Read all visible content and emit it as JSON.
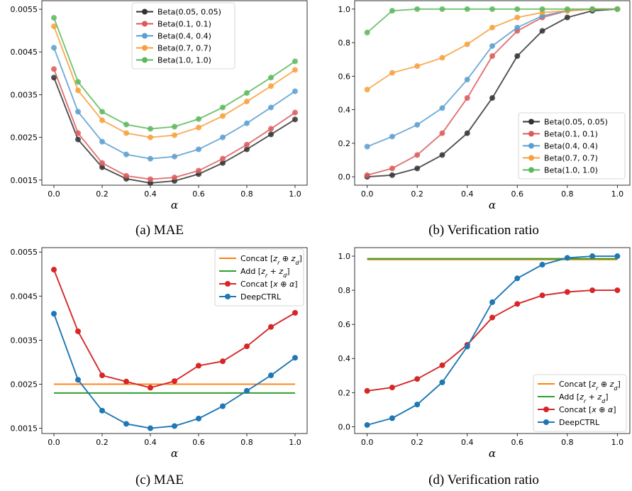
{
  "colors": {
    "beta_0.05": "#333333",
    "beta_0.1": "#dc5a5a",
    "beta_0.4": "#5a9fd0",
    "beta_0.7": "#f7a03c",
    "beta_1.0": "#5cb85c",
    "concat_zr_zd": "#ff7f0e",
    "add_zr_zd": "#2ca02c",
    "concat_x_alpha": "#d62728",
    "deepctrl": "#1f77b4"
  },
  "chart_data": [
    {
      "id": "a",
      "type": "line",
      "caption": "(a) MAE",
      "xlabel": "α",
      "ylabel": "",
      "xlim": [
        -0.05,
        1.05
      ],
      "ylim": [
        0.00138,
        0.0057
      ],
      "xticks": [
        "0.0",
        "0.2",
        "0.4",
        "0.6",
        "0.8",
        "1.0"
      ],
      "xtick_values": [
        0,
        0.2,
        0.4,
        0.6,
        0.8,
        1.0
      ],
      "yticks": [
        "0.0015",
        "0.0025",
        "0.0035",
        "0.0045",
        "0.0055"
      ],
      "ytick_values": [
        0.0015,
        0.0025,
        0.0035,
        0.0045,
        0.0055
      ],
      "legend": "top-center",
      "x": [
        0,
        0.1,
        0.2,
        0.3,
        0.4,
        0.5,
        0.6,
        0.7,
        0.8,
        0.9,
        1.0
      ],
      "series": [
        {
          "name": "Beta(0.05, 0.05)",
          "color_key": "beta_0.05",
          "values": [
            0.0039,
            0.00245,
            0.0018,
            0.00153,
            0.00143,
            0.00148,
            0.00164,
            0.0019,
            0.00222,
            0.00257,
            0.00292
          ]
        },
        {
          "name": "Beta(0.1, 0.1)",
          "color_key": "beta_0.1",
          "values": [
            0.0041,
            0.0026,
            0.0019,
            0.0016,
            0.00152,
            0.00156,
            0.00172,
            0.002,
            0.00233,
            0.0027,
            0.00308
          ]
        },
        {
          "name": "Beta(0.4, 0.4)",
          "color_key": "beta_0.4",
          "values": [
            0.0046,
            0.0031,
            0.0024,
            0.0021,
            0.002,
            0.00205,
            0.00222,
            0.0025,
            0.00283,
            0.0032,
            0.00358
          ]
        },
        {
          "name": "Beta(0.7, 0.7)",
          "color_key": "beta_0.7",
          "values": [
            0.0051,
            0.0036,
            0.0029,
            0.0026,
            0.0025,
            0.00255,
            0.00273,
            0.003,
            0.00334,
            0.0037,
            0.00408
          ]
        },
        {
          "name": "Beta(1.0, 1.0)",
          "color_key": "beta_1.0",
          "values": [
            0.0053,
            0.0038,
            0.0031,
            0.0028,
            0.0027,
            0.00275,
            0.00293,
            0.0032,
            0.00354,
            0.0039,
            0.00428
          ]
        }
      ]
    },
    {
      "id": "b",
      "type": "line",
      "caption": "(b) Verification ratio",
      "xlabel": "α",
      "ylabel": "",
      "xlim": [
        -0.05,
        1.05
      ],
      "ylim": [
        -0.05,
        1.05
      ],
      "xticks": [
        "0.0",
        "0.2",
        "0.4",
        "0.6",
        "0.8",
        "1.0"
      ],
      "xtick_values": [
        0,
        0.2,
        0.4,
        0.6,
        0.8,
        1.0
      ],
      "yticks": [
        "0.0",
        "0.2",
        "0.4",
        "0.6",
        "0.8",
        "1.0"
      ],
      "ytick_values": [
        0,
        0.2,
        0.4,
        0.6,
        0.8,
        1.0
      ],
      "legend": "bottom-right",
      "x": [
        0,
        0.1,
        0.2,
        0.3,
        0.4,
        0.5,
        0.6,
        0.7,
        0.8,
        0.9,
        1.0
      ],
      "series": [
        {
          "name": "Beta(0.05, 0.05)",
          "color_key": "beta_0.05",
          "values": [
            0.0,
            0.01,
            0.05,
            0.13,
            0.26,
            0.47,
            0.72,
            0.87,
            0.95,
            0.99,
            1.0
          ]
        },
        {
          "name": "Beta(0.1, 0.1)",
          "color_key": "beta_0.1",
          "values": [
            0.01,
            0.05,
            0.13,
            0.26,
            0.47,
            0.72,
            0.87,
            0.95,
            0.99,
            1.0,
            1.0
          ]
        },
        {
          "name": "Beta(0.4, 0.4)",
          "color_key": "beta_0.4",
          "values": [
            0.18,
            0.24,
            0.31,
            0.41,
            0.58,
            0.78,
            0.89,
            0.96,
            0.99,
            1.0,
            1.0
          ]
        },
        {
          "name": "Beta(0.7, 0.7)",
          "color_key": "beta_0.7",
          "values": [
            0.52,
            0.62,
            0.66,
            0.71,
            0.79,
            0.89,
            0.95,
            0.98,
            0.99,
            1.0,
            1.0
          ]
        },
        {
          "name": "Beta(1.0, 1.0)",
          "color_key": "beta_1.0",
          "values": [
            0.86,
            0.99,
            1.0,
            1.0,
            1.0,
            1.0,
            1.0,
            1.0,
            1.0,
            1.0,
            1.0
          ]
        }
      ]
    },
    {
      "id": "c",
      "type": "line",
      "caption": "(c) MAE",
      "xlabel": "α",
      "ylabel": "",
      "xlim": [
        -0.05,
        1.05
      ],
      "ylim": [
        0.00138,
        0.0056
      ],
      "xticks": [
        "0.0",
        "0.2",
        "0.4",
        "0.6",
        "0.8",
        "1.0"
      ],
      "xtick_values": [
        0,
        0.2,
        0.4,
        0.6,
        0.8,
        1.0
      ],
      "yticks": [
        "0.0015",
        "0.0025",
        "0.0035",
        "0.0045",
        "0.0055"
      ],
      "ytick_values": [
        0.0015,
        0.0025,
        0.0035,
        0.0045,
        0.0055
      ],
      "legend": "top-right",
      "x": [
        0,
        0.1,
        0.2,
        0.3,
        0.4,
        0.5,
        0.6,
        0.7,
        0.8,
        0.9,
        1.0
      ],
      "series": [
        {
          "name": "Concat [z_r ⊕ z_d]",
          "color_key": "concat_zr_zd",
          "markers": false,
          "values": [
            0.0025,
            0.0025,
            0.0025,
            0.0025,
            0.0025,
            0.0025,
            0.0025,
            0.0025,
            0.0025,
            0.0025,
            0.0025
          ]
        },
        {
          "name": "Add [z_r + z_d]",
          "color_key": "add_zr_zd",
          "markers": false,
          "values": [
            0.0023,
            0.0023,
            0.0023,
            0.0023,
            0.0023,
            0.0023,
            0.0023,
            0.0023,
            0.0023,
            0.0023,
            0.0023
          ]
        },
        {
          "name": "Concat [x ⊕ α]",
          "color_key": "concat_x_alpha",
          "markers": true,
          "values": [
            0.0051,
            0.0037,
            0.0027,
            0.00256,
            0.00242,
            0.00257,
            0.00292,
            0.00302,
            0.00336,
            0.0038,
            0.00412
          ]
        },
        {
          "name": "DeepCTRL",
          "color_key": "deepctrl",
          "markers": true,
          "values": [
            0.0041,
            0.0026,
            0.0019,
            0.0016,
            0.0015,
            0.00155,
            0.00172,
            0.002,
            0.00235,
            0.0027,
            0.0031
          ]
        }
      ]
    },
    {
      "id": "d",
      "type": "line",
      "caption": "(d) Verification ratio",
      "xlabel": "α",
      "ylabel": "",
      "xlim": [
        -0.05,
        1.05
      ],
      "ylim": [
        -0.04,
        1.05
      ],
      "xticks": [
        "0.0",
        "0.2",
        "0.4",
        "0.6",
        "0.8",
        "1.0"
      ],
      "xtick_values": [
        0,
        0.2,
        0.4,
        0.6,
        0.8,
        1.0
      ],
      "yticks": [
        "0.0",
        "0.2",
        "0.4",
        "0.6",
        "0.8",
        "1.0"
      ],
      "ytick_values": [
        0,
        0.2,
        0.4,
        0.6,
        0.8,
        1.0
      ],
      "legend": "bottom-right",
      "x": [
        0,
        0.1,
        0.2,
        0.3,
        0.4,
        0.5,
        0.6,
        0.7,
        0.8,
        0.9,
        1.0
      ],
      "series": [
        {
          "name": "Concat [z_r ⊕ z_d]",
          "color_key": "concat_zr_zd",
          "markers": false,
          "values": [
            0.98,
            0.98,
            0.98,
            0.98,
            0.98,
            0.98,
            0.98,
            0.98,
            0.98,
            0.98,
            0.98
          ]
        },
        {
          "name": "Add [z_r + z_d]",
          "color_key": "add_zr_zd",
          "markers": false,
          "values": [
            0.985,
            0.985,
            0.985,
            0.985,
            0.985,
            0.985,
            0.985,
            0.985,
            0.985,
            0.985,
            0.985
          ]
        },
        {
          "name": "Concat [x ⊕ α]",
          "color_key": "concat_x_alpha",
          "markers": true,
          "values": [
            0.21,
            0.23,
            0.28,
            0.36,
            0.48,
            0.64,
            0.72,
            0.77,
            0.79,
            0.8,
            0.8
          ]
        },
        {
          "name": "DeepCTRL",
          "color_key": "deepctrl",
          "markers": true,
          "values": [
            0.01,
            0.05,
            0.13,
            0.26,
            0.47,
            0.73,
            0.87,
            0.95,
            0.99,
            1.0,
            1.0
          ]
        }
      ]
    }
  ]
}
